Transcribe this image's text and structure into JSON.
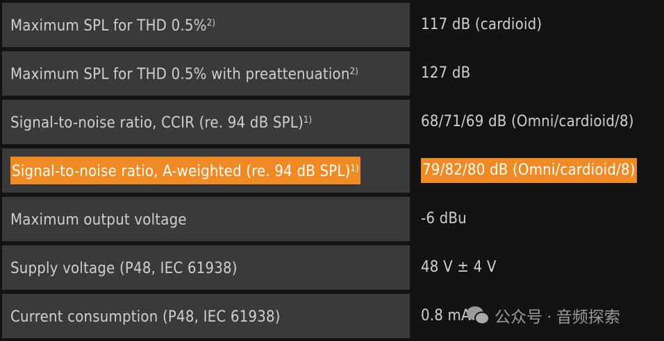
{
  "rows": [
    {
      "label": "Maximum SPL for THD 0.5%",
      "note": "2)",
      "value": "117 dB (cardioid)",
      "highlighted": false
    },
    {
      "label": "Maximum SPL for THD 0.5% with preattenuation",
      "note": "2)",
      "value": "127 dB",
      "highlighted": false
    },
    {
      "label": "Signal-to-noise ratio, CCIR (re. 94 dB SPL)",
      "note": "1)",
      "value": "68/71/69 dB (Omni/cardioid/8)",
      "highlighted": false
    },
    {
      "label": "Signal-to-noise ratio, A-weighted (re. 94 dB SPL)",
      "note": "1)",
      "value": "79/82/80 dB (Omni/cardioid/8)",
      "highlighted": true
    },
    {
      "label": "Maximum output voltage",
      "note": "",
      "value": "-6 dBu",
      "highlighted": false
    },
    {
      "label": "Supply voltage (P48, IEC 61938)",
      "note": "",
      "value": "48 V ± 4 V",
      "highlighted": false
    },
    {
      "label": "Current consumption (P48, IEC 61938)",
      "note": "",
      "value": "0.8 mA",
      "highlighted": false
    }
  ],
  "watermark": {
    "icon": "wechat-icon",
    "text": "公众号 · 音频探索"
  },
  "colors": {
    "highlight": "#f08a24",
    "cell": "#3a3a3a",
    "background": "#131313"
  }
}
